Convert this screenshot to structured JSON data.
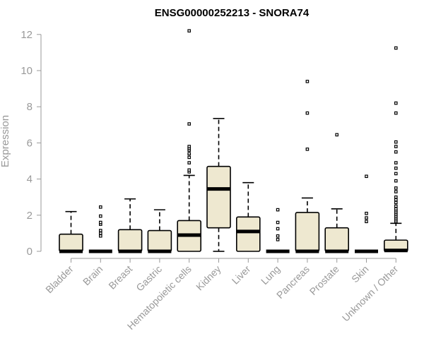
{
  "chart_data": {
    "type": "boxplot",
    "title": "ENSG00000252213 - SNORA74",
    "ylabel": "Expression",
    "xlabel": "",
    "ylim": [
      0,
      12.2
    ],
    "yticks": [
      0,
      2,
      4,
      6,
      8,
      10,
      12
    ],
    "box_fill": "#EEE8D0",
    "box_stroke": "#000000",
    "axis_color": "#999999",
    "categories": [
      "Bladder",
      "Brain",
      "Breast",
      "Gastric",
      "Hematopoietic cells",
      "Kidney",
      "Liver",
      "Lung",
      "Pancreas",
      "Prostate",
      "Skin",
      "Unknown / Other"
    ],
    "boxes": [
      {
        "category": "Bladder",
        "q1": 0,
        "median": 0,
        "q3": 0.95,
        "whisker_low": 0,
        "whisker_high": 2.2,
        "outliers": []
      },
      {
        "category": "Brain",
        "q1": 0,
        "median": 0,
        "q3": 0,
        "whisker_low": 0,
        "whisker_high": 0,
        "outliers": [
          0.85,
          1.0,
          1.15,
          1.5,
          1.6,
          1.95,
          2.45
        ]
      },
      {
        "category": "Breast",
        "q1": 0,
        "median": 0,
        "q3": 1.2,
        "whisker_low": 0,
        "whisker_high": 2.9,
        "outliers": []
      },
      {
        "category": "Gastric",
        "q1": 0,
        "median": 0,
        "q3": 1.15,
        "whisker_low": 0,
        "whisker_high": 2.3,
        "outliers": []
      },
      {
        "category": "Hematopoietic cells",
        "q1": 0,
        "median": 0.9,
        "q3": 1.7,
        "whisker_low": 0,
        "whisker_high": 4.2,
        "outliers": [
          4.4,
          4.5,
          4.9,
          5.2,
          5.4,
          5.6,
          5.7,
          5.8,
          7.05,
          12.2
        ]
      },
      {
        "category": "Kidney",
        "q1": 1.3,
        "median": 3.45,
        "q3": 4.7,
        "whisker_low": 0,
        "whisker_high": 7.35,
        "outliers": []
      },
      {
        "category": "Liver",
        "q1": 0,
        "median": 1.1,
        "q3": 1.9,
        "whisker_low": 0,
        "whisker_high": 3.8,
        "outliers": []
      },
      {
        "category": "Lung",
        "q1": 0,
        "median": 0,
        "q3": 0,
        "whisker_low": 0,
        "whisker_high": 0,
        "outliers": [
          0.65,
          0.85,
          1.25,
          1.6,
          2.3
        ]
      },
      {
        "category": "Pancreas",
        "q1": 0,
        "median": 0,
        "q3": 2.15,
        "whisker_low": 0,
        "whisker_high": 2.95,
        "outliers": [
          5.65,
          7.65,
          9.4
        ]
      },
      {
        "category": "Prostate",
        "q1": 0,
        "median": 0,
        "q3": 1.3,
        "whisker_low": 0,
        "whisker_high": 2.35,
        "outliers": [
          6.45
        ]
      },
      {
        "category": "Skin",
        "q1": 0,
        "median": 0,
        "q3": 0,
        "whisker_low": 0,
        "whisker_high": 0,
        "outliers": [
          1.65,
          1.85,
          2.1,
          4.15
        ]
      },
      {
        "category": "Unknown / Other",
        "q1": 0,
        "median": 0.05,
        "q3": 0.62,
        "whisker_low": 0,
        "whisker_high": 1.55,
        "outliers": [
          1.65,
          1.75,
          1.85,
          1.95,
          2.05,
          2.15,
          2.25,
          2.35,
          2.5,
          2.7,
          2.85,
          3.0,
          3.3,
          3.5,
          3.9,
          4.3,
          4.6,
          4.9,
          5.5,
          5.8,
          6.05,
          7.65,
          8.2,
          11.25
        ]
      }
    ]
  }
}
